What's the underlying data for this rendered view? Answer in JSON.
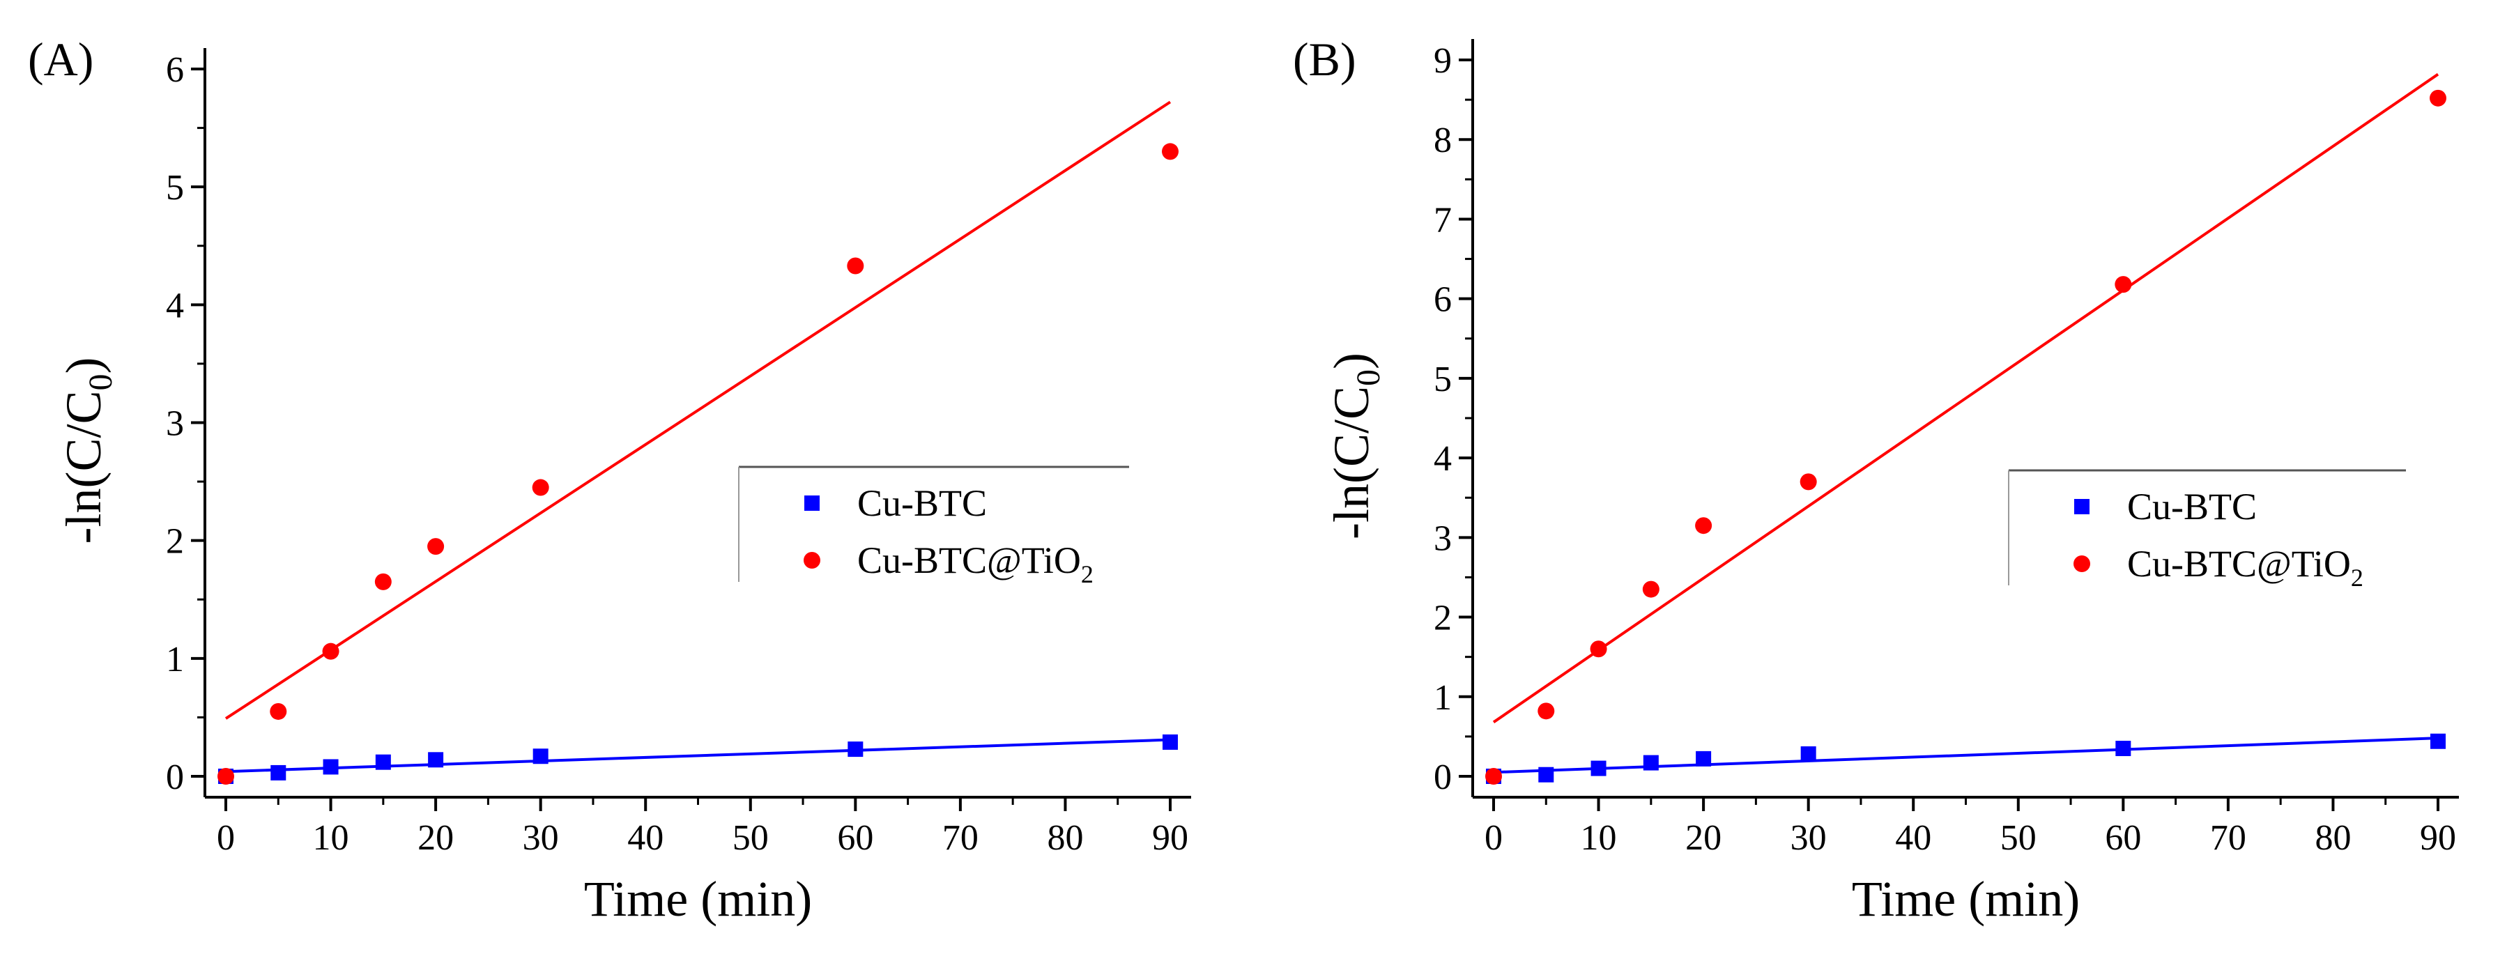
{
  "figure": {
    "panels_label": [
      "(A)",
      "(B)"
    ]
  },
  "chart_data": [
    {
      "type": "scatter",
      "panel_label": "(A)",
      "xlabel": "Time (min)",
      "ylabel": "-ln(C/C0)",
      "ylabel_main": "-ln(C/C",
      "ylabel_sub": "0",
      "ylabel_close": ")",
      "xlim": [
        0,
        90
      ],
      "ylim": [
        0,
        6
      ],
      "xticks": [
        0,
        10,
        20,
        30,
        40,
        50,
        60,
        70,
        80,
        90
      ],
      "yticks": [
        0,
        1,
        2,
        3,
        4,
        5,
        6
      ],
      "grid": false,
      "legend_position": "center-right",
      "series": [
        {
          "name": "Cu-BTC",
          "name_main": "Cu-BTC",
          "name_sub": "",
          "marker": "square",
          "color": "#0000ff",
          "x": [
            0,
            5,
            10,
            15,
            20,
            30,
            60,
            90
          ],
          "y": [
            0.0,
            0.03,
            0.08,
            0.12,
            0.14,
            0.17,
            0.23,
            0.29
          ],
          "fit": [
            [
              0,
              0.04
            ],
            [
              90,
              0.31
            ]
          ]
        },
        {
          "name": "Cu-BTC@TiO2",
          "name_main": "Cu-BTC@TiO",
          "name_sub": "2",
          "marker": "circle",
          "color": "#ff0000",
          "x": [
            0,
            5,
            10,
            15,
            20,
            30,
            60,
            90
          ],
          "y": [
            0.0,
            0.55,
            1.06,
            1.65,
            1.95,
            2.45,
            4.33,
            5.3
          ],
          "fit": [
            [
              0,
              0.49
            ],
            [
              90,
              5.72
            ]
          ]
        }
      ]
    },
    {
      "type": "scatter",
      "panel_label": "(B)",
      "xlabel": "Time (min)",
      "ylabel": "-ln(C/C0)",
      "ylabel_main": "-ln(C/C",
      "ylabel_sub": "0",
      "ylabel_close": ")",
      "xlim": [
        0,
        90
      ],
      "ylim": [
        0,
        9
      ],
      "xticks": [
        0,
        10,
        20,
        30,
        40,
        50,
        60,
        70,
        80,
        90
      ],
      "yticks": [
        0,
        1,
        2,
        3,
        4,
        5,
        6,
        7,
        8,
        9
      ],
      "grid": false,
      "legend_position": "center-right",
      "series": [
        {
          "name": "Cu-BTC",
          "name_main": "Cu-BTC",
          "name_sub": "",
          "marker": "square",
          "color": "#0000ff",
          "x": [
            0,
            5,
            10,
            15,
            20,
            30,
            60,
            90
          ],
          "y": [
            0.0,
            0.02,
            0.1,
            0.17,
            0.22,
            0.28,
            0.35,
            0.44
          ],
          "fit": [
            [
              0,
              0.05
            ],
            [
              90,
              0.48
            ]
          ]
        },
        {
          "name": "Cu-BTC@TiO2",
          "name_main": "Cu-BTC@TiO",
          "name_sub": "2",
          "marker": "circle",
          "color": "#ff0000",
          "x": [
            0,
            5,
            10,
            15,
            20,
            30,
            60,
            90
          ],
          "y": [
            0.0,
            0.82,
            1.6,
            2.35,
            3.15,
            3.7,
            6.18,
            8.52
          ],
          "fit": [
            [
              0,
              0.68
            ],
            [
              90,
              8.82
            ]
          ]
        }
      ]
    }
  ]
}
